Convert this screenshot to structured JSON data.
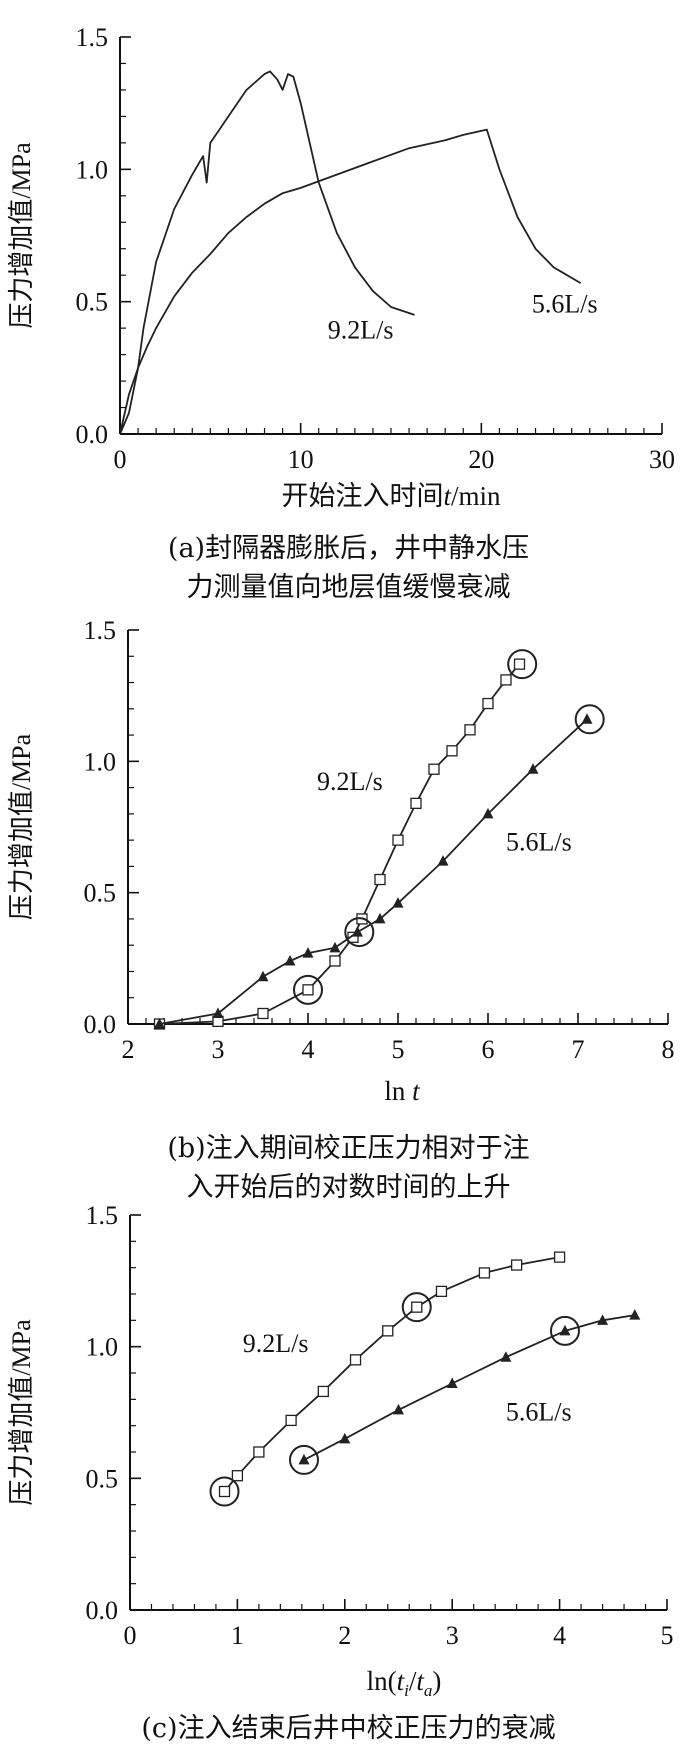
{
  "chart_data": [
    {
      "type": "line",
      "id": "a",
      "caption_line1": "(a)封隔器膨胀后，井中静水压",
      "caption_line2": "力测量值向地层值缓慢衰减",
      "xlabel_prefix": "开始注入时间",
      "xlabel_italic": "t",
      "xlabel_suffix": "/min",
      "ylabel": "压力增加值/MPa",
      "xlim": [
        0,
        30
      ],
      "ylim": [
        0,
        1.5
      ],
      "xticks": [
        "0",
        "10",
        "20",
        "30"
      ],
      "yticks": [
        "0.0",
        "0.5",
        "1.0",
        "1.5"
      ],
      "series": [
        {
          "name": "9.2L/s",
          "x": [
            0,
            0.5,
            1,
            1.3,
            2,
            3,
            4,
            4.6,
            4.8,
            5,
            5.5,
            6,
            7,
            7.5,
            8,
            8.3,
            8.7,
            9,
            9.3,
            9.6,
            10,
            11,
            12,
            13,
            14,
            15,
            16.3
          ],
          "y": [
            0,
            0.08,
            0.25,
            0.4,
            0.65,
            0.85,
            0.98,
            1.05,
            0.95,
            1.1,
            1.15,
            1.2,
            1.3,
            1.33,
            1.36,
            1.37,
            1.34,
            1.3,
            1.36,
            1.35,
            1.25,
            0.95,
            0.76,
            0.63,
            0.54,
            0.48,
            0.45
          ]
        },
        {
          "name": "5.6L/s",
          "x": [
            0,
            0.5,
            1,
            1.5,
            2,
            3,
            4,
            5,
            6,
            7,
            8,
            9,
            10,
            12,
            14,
            16,
            18,
            19,
            20.3,
            21,
            22,
            23,
            24,
            25.5
          ],
          "y": [
            0,
            0.15,
            0.25,
            0.33,
            0.4,
            0.52,
            0.61,
            0.68,
            0.76,
            0.82,
            0.87,
            0.91,
            0.93,
            0.98,
            1.03,
            1.08,
            1.11,
            1.13,
            1.15,
            1.0,
            0.82,
            0.7,
            0.63,
            0.57
          ]
        }
      ],
      "annotations": [
        {
          "text": "9.2L/s",
          "x": 11.5,
          "y": 0.36
        },
        {
          "text": "5.6L/s",
          "x": 22.8,
          "y": 0.46
        }
      ]
    },
    {
      "type": "line",
      "id": "b",
      "caption_line1": "(b)注入期间校正压力相对于注",
      "caption_line2": "入开始后的对数时间的上升",
      "xlabel_prefix": "ln ",
      "xlabel_italic": "t",
      "xlabel_suffix": "",
      "ylabel": "压力增加值/MPa",
      "xlim": [
        2,
        8
      ],
      "ylim": [
        0,
        1.5
      ],
      "xticks": [
        "2",
        "3",
        "4",
        "5",
        "6",
        "7",
        "8"
      ],
      "yticks": [
        "0.0",
        "0.5",
        "1.0",
        "1.5"
      ],
      "series": [
        {
          "name": "9.2L/s",
          "marker": "square",
          "x": [
            2.35,
            3.0,
            3.5,
            4.0,
            4.3,
            4.5,
            4.6,
            4.8,
            5.0,
            5.2,
            5.4,
            5.6,
            5.8,
            6.0,
            6.2,
            6.35
          ],
          "y": [
            0.0,
            0.01,
            0.04,
            0.13,
            0.24,
            0.33,
            0.4,
            0.55,
            0.7,
            0.84,
            0.97,
            1.04,
            1.12,
            1.22,
            1.31,
            1.37
          ]
        },
        {
          "name": "5.6L/s",
          "marker": "triangle",
          "x": [
            2.35,
            3.0,
            3.5,
            3.8,
            4.0,
            4.3,
            4.55,
            4.8,
            5.0,
            5.5,
            6.0,
            6.5,
            7.1
          ],
          "y": [
            0.0,
            0.04,
            0.18,
            0.24,
            0.27,
            0.29,
            0.35,
            0.4,
            0.46,
            0.62,
            0.8,
            0.97,
            1.16
          ]
        }
      ],
      "circles": [
        {
          "x": 4.0,
          "y": 0.13
        },
        {
          "x": 4.57,
          "y": 0.35
        },
        {
          "x": 6.38,
          "y": 1.37
        },
        {
          "x": 7.13,
          "y": 1.16
        }
      ],
      "annotations": [
        {
          "text": "9.2L/s",
          "x": 4.1,
          "y": 0.89
        },
        {
          "text": "5.6L/s",
          "x": 6.2,
          "y": 0.66
        }
      ]
    },
    {
      "type": "line",
      "id": "c",
      "caption_line1": "(c)注入结束后井中校正压力的衰减",
      "xlabel_prefix": "ln(",
      "xlabel_italic": "t",
      "xlabel_sub1": "i",
      "xlabel_mid": "/",
      "xlabel_italic2": "t",
      "xlabel_sub2": "a",
      "xlabel_suffix": ")",
      "ylabel": "压力增加值/MPa",
      "xlim": [
        0,
        5
      ],
      "ylim": [
        0,
        1.5
      ],
      "xticks": [
        "0",
        "1",
        "2",
        "3",
        "4",
        "5"
      ],
      "yticks": [
        "0.0",
        "0.5",
        "1.0",
        "1.5"
      ],
      "series": [
        {
          "name": "9.2L/s",
          "marker": "square",
          "x": [
            0.88,
            1.0,
            1.2,
            1.5,
            1.8,
            2.1,
            2.4,
            2.67,
            2.9,
            3.3,
            3.6,
            4.0
          ],
          "y": [
            0.45,
            0.51,
            0.6,
            0.72,
            0.83,
            0.95,
            1.06,
            1.15,
            1.21,
            1.28,
            1.31,
            1.34
          ]
        },
        {
          "name": "5.6L/s",
          "marker": "triangle",
          "x": [
            1.62,
            2.0,
            2.5,
            3.0,
            3.5,
            4.05,
            4.4,
            4.7
          ],
          "y": [
            0.57,
            0.65,
            0.76,
            0.86,
            0.96,
            1.06,
            1.1,
            1.12
          ]
        }
      ],
      "circles": [
        {
          "x": 0.88,
          "y": 0.45
        },
        {
          "x": 1.62,
          "y": 0.57
        },
        {
          "x": 2.67,
          "y": 1.15
        },
        {
          "x": 4.05,
          "y": 1.06
        }
      ],
      "annotations": [
        {
          "text": "9.2L/s",
          "x": 1.05,
          "y": 0.98
        },
        {
          "text": "5.6L/s",
          "x": 3.5,
          "y": 0.72
        }
      ]
    }
  ]
}
